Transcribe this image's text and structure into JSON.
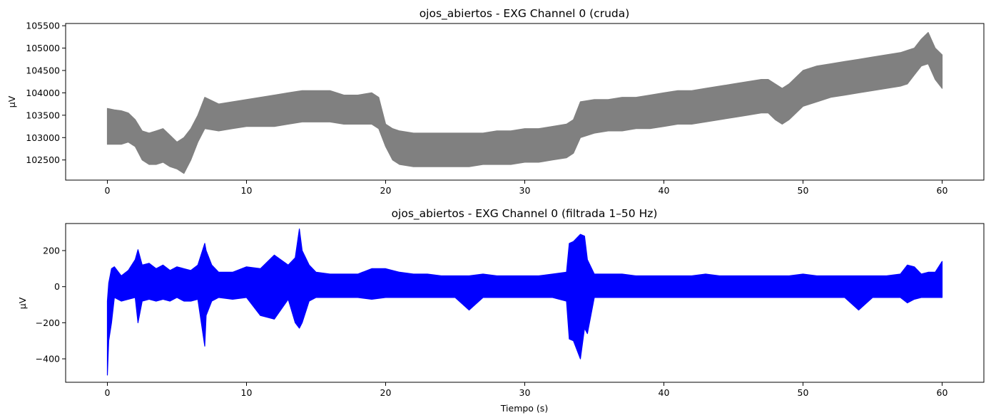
{
  "figure": {
    "background": "#ffffff"
  },
  "chart_data": [
    {
      "type": "line",
      "title": "ojos_abiertos -  EXG Channel 0 (cruda)",
      "xlabel": "",
      "ylabel": "µV",
      "xlim": [
        -3,
        63
      ],
      "ylim": [
        102050,
        105550
      ],
      "xticks": [
        0,
        10,
        20,
        30,
        40,
        50,
        60
      ],
      "yticks": [
        102500,
        103000,
        103500,
        104000,
        104500,
        105000,
        105500
      ],
      "color": "#808080",
      "series": [
        {
          "x": [
            0,
            0.5,
            1,
            1.5,
            2,
            2.5,
            3,
            3.5,
            4,
            4.5,
            5,
            5.5,
            6,
            6.5,
            7,
            8,
            9,
            10,
            11,
            12,
            13,
            14,
            15,
            16,
            17,
            18,
            19,
            19.5,
            20,
            20.5,
            21,
            22,
            23,
            24,
            25,
            26,
            27,
            28,
            29,
            30,
            31,
            32,
            33,
            33.5,
            34,
            35,
            36,
            37,
            38,
            39,
            40,
            41,
            42,
            43,
            44,
            45,
            46,
            47,
            47.5,
            48,
            48.5,
            49,
            50,
            51,
            52,
            53,
            54,
            55,
            56,
            57,
            57.5,
            58,
            58.5,
            59,
            59.5,
            60
          ],
          "upper": [
            103650,
            103620,
            103600,
            103550,
            103400,
            103150,
            103100,
            103150,
            103200,
            103050,
            102900,
            103000,
            103200,
            103500,
            103900,
            103750,
            103800,
            103850,
            103900,
            103950,
            104000,
            104050,
            104050,
            104050,
            103950,
            103950,
            104000,
            103900,
            103300,
            103200,
            103150,
            103100,
            103100,
            103100,
            103100,
            103100,
            103100,
            103150,
            103150,
            103200,
            103200,
            103250,
            103300,
            103400,
            103800,
            103850,
            103850,
            103900,
            103900,
            103950,
            104000,
            104050,
            104050,
            104100,
            104150,
            104200,
            104250,
            104300,
            104300,
            104200,
            104100,
            104200,
            104500,
            104600,
            104650,
            104700,
            104750,
            104800,
            104850,
            104900,
            104950,
            105000,
            105200,
            105350,
            105000,
            104850
          ],
          "lower": [
            102850,
            102850,
            102850,
            102900,
            102800,
            102500,
            102400,
            102400,
            102450,
            102350,
            102300,
            102200,
            102500,
            102900,
            103200,
            103150,
            103200,
            103250,
            103250,
            103250,
            103300,
            103350,
            103350,
            103350,
            103300,
            103300,
            103300,
            103200,
            102800,
            102500,
            102400,
            102350,
            102350,
            102350,
            102350,
            102350,
            102400,
            102400,
            102400,
            102450,
            102450,
            102500,
            102550,
            102650,
            103000,
            103100,
            103150,
            103150,
            103200,
            103200,
            103250,
            103300,
            103300,
            103350,
            103400,
            103450,
            103500,
            103550,
            103550,
            103400,
            103300,
            103400,
            103700,
            103800,
            103900,
            103950,
            104000,
            104050,
            104100,
            104150,
            104200,
            104400,
            104600,
            104650,
            104300,
            104100
          ]
        }
      ]
    },
    {
      "type": "line",
      "title": "ojos_abiertos -  EXG Channel 0 (filtrada 1–50 Hz)",
      "xlabel": "Tiempo (s)",
      "ylabel": "µV",
      "xlim": [
        -3,
        63
      ],
      "ylim": [
        -530,
        350
      ],
      "xticks": [
        0,
        10,
        20,
        30,
        40,
        50,
        60
      ],
      "yticks": [
        -400,
        -200,
        0,
        200
      ],
      "color": "#0000ff",
      "series": [
        {
          "x": [
            0,
            0.1,
            0.3,
            0.5,
            1,
            1.5,
            2,
            2.2,
            2.5,
            3,
            3.5,
            4,
            4.5,
            5,
            5.5,
            6,
            6.5,
            7,
            7.1,
            7.5,
            8,
            9,
            10,
            11,
            12,
            13,
            13.5,
            13.8,
            14,
            14.5,
            15,
            16,
            17,
            18,
            19,
            20,
            21,
            22,
            23,
            24,
            25,
            26,
            27,
            28,
            29,
            30,
            31,
            32,
            33,
            33.2,
            33.5,
            34,
            34.3,
            34.5,
            35,
            36,
            37,
            38,
            39,
            40,
            41,
            42,
            43,
            44,
            45,
            46,
            47,
            48,
            49,
            50,
            51,
            52,
            53,
            54,
            55,
            56,
            57,
            57.5,
            58,
            58.5,
            59,
            59.5,
            60
          ],
          "upper": [
            -80,
            20,
            100,
            110,
            60,
            90,
            150,
            205,
            120,
            130,
            100,
            120,
            90,
            110,
            100,
            90,
            120,
            240,
            200,
            120,
            80,
            80,
            110,
            100,
            175,
            120,
            160,
            320,
            200,
            120,
            80,
            70,
            70,
            70,
            100,
            100,
            80,
            70,
            70,
            60,
            60,
            60,
            70,
            60,
            60,
            60,
            60,
            70,
            80,
            240,
            250,
            290,
            280,
            150,
            70,
            70,
            70,
            60,
            60,
            60,
            60,
            60,
            70,
            60,
            60,
            60,
            60,
            60,
            60,
            70,
            60,
            60,
            60,
            60,
            60,
            60,
            70,
            120,
            110,
            70,
            80,
            80,
            140
          ],
          "lower": [
            -490,
            -300,
            -200,
            -60,
            -80,
            -70,
            -60,
            -200,
            -80,
            -70,
            -80,
            -70,
            -80,
            -60,
            -80,
            -80,
            -70,
            -330,
            -160,
            -80,
            -60,
            -70,
            -60,
            -160,
            -180,
            -70,
            -200,
            -230,
            -200,
            -80,
            -60,
            -60,
            -60,
            -60,
            -70,
            -60,
            -60,
            -60,
            -60,
            -60,
            -60,
            -130,
            -60,
            -60,
            -60,
            -60,
            -60,
            -60,
            -80,
            -290,
            -300,
            -400,
            -230,
            -260,
            -60,
            -60,
            -60,
            -60,
            -60,
            -60,
            -60,
            -60,
            -60,
            -60,
            -60,
            -60,
            -60,
            -60,
            -60,
            -60,
            -60,
            -60,
            -60,
            -130,
            -60,
            -60,
            -60,
            -90,
            -70,
            -60,
            -60,
            -60,
            -60
          ]
        }
      ]
    }
  ]
}
